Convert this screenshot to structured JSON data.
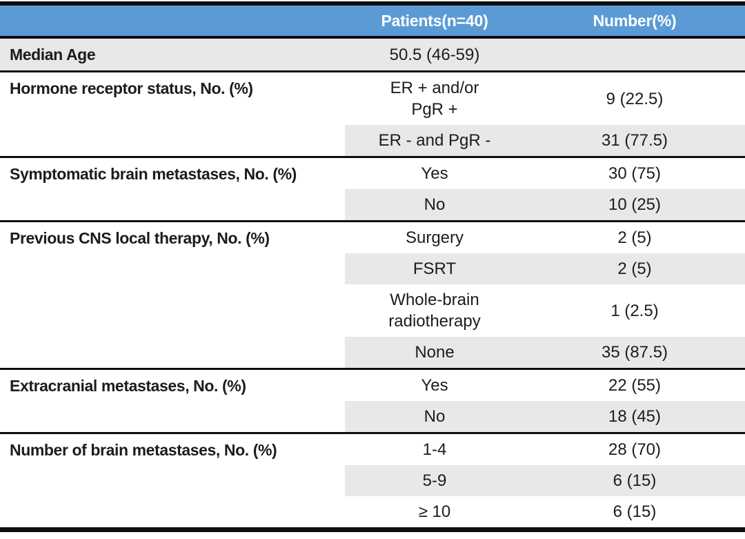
{
  "table": {
    "header": {
      "label_column": "",
      "patients": "Patients(n=40)",
      "number": "Number(%)"
    },
    "colors": {
      "header_bg": "#5b9bd5",
      "header_text": "#ffffff",
      "row_shade": "#e9e7e8",
      "border": "#0e0e0e"
    },
    "sections": [
      {
        "label": "Median Age",
        "rows": [
          {
            "patients": "50.5 (46-59)",
            "number": ""
          }
        ]
      },
      {
        "label": "Hormone receptor status, No. (%)",
        "rows": [
          {
            "patients": "ER + and/or\nPgR +",
            "number": "9 (22.5)"
          },
          {
            "patients": "ER - and PgR -",
            "number": "31 (77.5)"
          }
        ]
      },
      {
        "label": "Symptomatic brain metastases, No. (%)",
        "rows": [
          {
            "patients": "Yes",
            "number": "30 (75)"
          },
          {
            "patients": "No",
            "number": "10 (25)"
          }
        ]
      },
      {
        "label": "Previous CNS local therapy, No. (%)",
        "rows": [
          {
            "patients": "Surgery",
            "number": "2 (5)"
          },
          {
            "patients": "FSRT",
            "number": "2 (5)"
          },
          {
            "patients": "Whole-brain\nradiotherapy",
            "number": "1 (2.5)"
          },
          {
            "patients": "None",
            "number": "35 (87.5)"
          }
        ]
      },
      {
        "label": "Extracranial metastases, No. (%)",
        "rows": [
          {
            "patients": "Yes",
            "number": "22 (55)"
          },
          {
            "patients": "No",
            "number": "18 (45)"
          }
        ]
      },
      {
        "label": "Number of brain metastases, No. (%)",
        "rows": [
          {
            "patients": "1-4",
            "number": "28 (70)"
          },
          {
            "patients": "5-9",
            "number": "6 (15)"
          },
          {
            "patients": "≥ 10",
            "number": "6 (15)"
          }
        ]
      }
    ]
  }
}
